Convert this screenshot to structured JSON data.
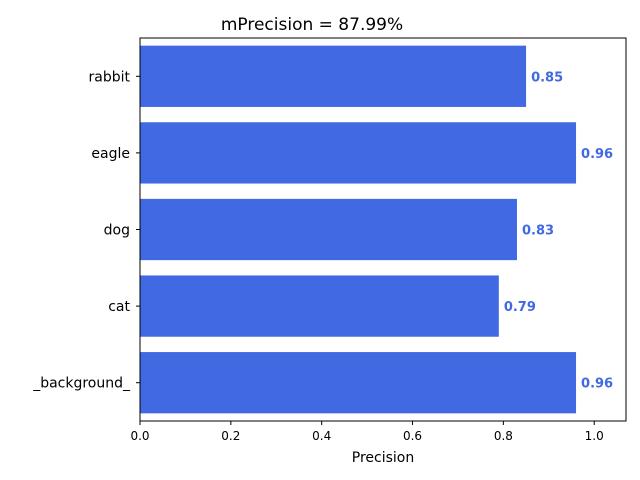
{
  "chart_data": {
    "type": "bar",
    "orientation": "horizontal",
    "title": "mPrecision = 87.99%",
    "xlabel": "Precision",
    "ylabel": "",
    "categories": [
      "_background_",
      "cat",
      "dog",
      "eagle",
      "rabbit"
    ],
    "values": [
      0.96,
      0.79,
      0.83,
      0.96,
      0.85
    ],
    "value_labels": [
      "0.96",
      "0.79",
      "0.83",
      "0.96",
      "0.85"
    ],
    "xlim": [
      0,
      1.07
    ],
    "xticks": [
      0,
      0.2,
      0.4,
      0.6,
      0.8,
      1.0
    ],
    "xtick_labels": [
      "0.0",
      "0.2",
      "0.4",
      "0.6",
      "0.8",
      "1.0"
    ],
    "grid": false,
    "bar_color": "#4169E1",
    "label_color": "#4169E1"
  }
}
